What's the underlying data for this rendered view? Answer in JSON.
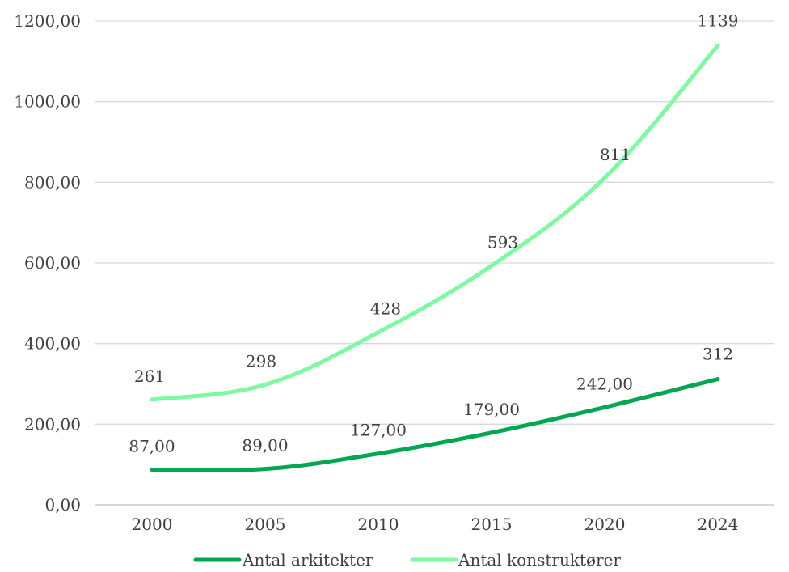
{
  "chart_data": {
    "type": "line",
    "title": "",
    "xlabel": "",
    "ylabel": "",
    "categories": [
      "2000",
      "2005",
      "2010",
      "2015",
      "2020",
      "2024"
    ],
    "ylim": [
      0,
      1200
    ],
    "y_ticks": [
      "0,00",
      "200,00",
      "400,00",
      "600,00",
      "800,00",
      "1000,00",
      "1200,00"
    ],
    "grid": "horizontal",
    "legend_position": "bottom",
    "series": [
      {
        "name": "Antal arkitekter",
        "values": [
          87,
          89,
          127,
          179,
          242,
          312
        ],
        "labels": [
          "87,00",
          "89,00",
          "127,00",
          "179,00",
          "242,00",
          "312"
        ],
        "color": "#00a651"
      },
      {
        "name": "Antal konstruktører",
        "values": [
          261,
          298,
          428,
          593,
          811,
          1139
        ],
        "labels": [
          "261",
          "298",
          "428",
          "593",
          "811",
          "1139"
        ],
        "color": "#7dfaa0"
      }
    ]
  }
}
